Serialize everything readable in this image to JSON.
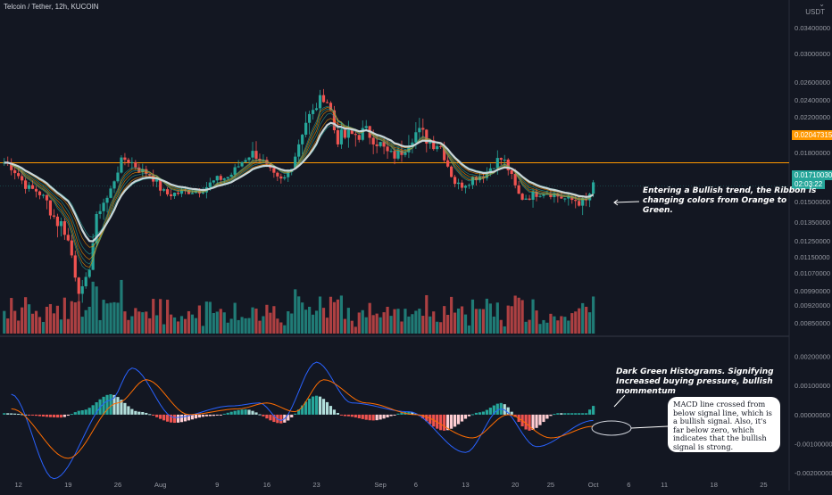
{
  "header": {
    "symbol_title": "Telcoin / Tether, 12h, KUCOIN",
    "currency_menu": "USDT"
  },
  "colors": {
    "background": "#131722",
    "up": "#26a69a",
    "down": "#ef5350",
    "up_bright": "#b2dfdb",
    "down_bright": "#ffcdd2",
    "ribbon_orange": "#ff9800",
    "ribbon_green": "#26a69a",
    "ribbon_base": "#c9d6d9",
    "macd_line": "#2962ff",
    "signal_line": "#ff6d00",
    "level_line": "#ff9800",
    "annotation": "#ffffff"
  },
  "chart_data": [
    {
      "type": "candlestick",
      "title": "Telcoin / Tether, 12h, KUCOIN",
      "y_axis": {
        "labels": [
          "0.03400000",
          "0.03000000",
          "0.02600000",
          "0.02400000",
          "0.02200000",
          "0.01800000",
          "0.01500000",
          "0.01350000",
          "0.01250000",
          "0.01150000",
          "0.01070000",
          "0.00990000",
          "0.00920000",
          "0.00850000"
        ],
        "scale": "log",
        "range": [
          0.0081,
          0.04
        ]
      },
      "x_axis": {
        "labels": [
          "12",
          "19",
          "26",
          "Aug",
          "9",
          "16",
          "23",
          "Sep",
          "6",
          "13",
          "20",
          "25",
          "Oct",
          "6",
          "11",
          "18",
          "25"
        ]
      },
      "horizontal_level": {
        "value": 0.02047315,
        "label": "0.02047315"
      },
      "last_price": {
        "value": 0.0171,
        "label": "0.01710030",
        "countdown": "02:03:22"
      },
      "series_close_anchors": [
        {
          "date": "Jul 10",
          "close": 0.0205
        },
        {
          "date": "Jul 14",
          "close": 0.0166
        },
        {
          "date": "Jul 18",
          "close": 0.0134
        },
        {
          "date": "Jul 21",
          "close": 0.0098
        },
        {
          "date": "Jul 24",
          "close": 0.015
        },
        {
          "date": "Jul 27",
          "close": 0.021
        },
        {
          "date": "Jul 30",
          "close": 0.019
        },
        {
          "date": "Aug 2",
          "close": 0.016
        },
        {
          "date": "Aug 6",
          "close": 0.0165
        },
        {
          "date": "Aug 10",
          "close": 0.0182
        },
        {
          "date": "Aug 14",
          "close": 0.0218
        },
        {
          "date": "Aug 18",
          "close": 0.0178
        },
        {
          "date": "Aug 22",
          "close": 0.0255
        },
        {
          "date": "Aug 24",
          "close": 0.029
        },
        {
          "date": "Aug 26",
          "close": 0.0235
        },
        {
          "date": "Aug 30",
          "close": 0.024
        },
        {
          "date": "Sep 3",
          "close": 0.0215
        },
        {
          "date": "Sep 6",
          "close": 0.024
        },
        {
          "date": "Sep 9",
          "close": 0.023
        },
        {
          "date": "Sep 12",
          "close": 0.0172
        },
        {
          "date": "Sep 15",
          "close": 0.0185
        },
        {
          "date": "Sep 18",
          "close": 0.021
        },
        {
          "date": "Sep 21",
          "close": 0.0155
        },
        {
          "date": "Sep 24",
          "close": 0.0163
        },
        {
          "date": "Sep 28",
          "close": 0.0152
        },
        {
          "date": "Sep 30",
          "close": 0.015
        },
        {
          "date": "Oct 1",
          "close": 0.0171
        }
      ]
    },
    {
      "type": "macd",
      "y_axis": {
        "labels": [
          "0.00200000",
          "0.00100000",
          "0.00000000",
          "-0.00100000",
          "-0.00200000"
        ],
        "range": [
          -0.0023,
          0.0026
        ]
      },
      "histogram_anchors": [
        {
          "date": "Jul 10",
          "value": 5e-05
        },
        {
          "date": "Jul 18",
          "value": -0.0001
        },
        {
          "date": "Jul 21",
          "value": 0.00015
        },
        {
          "date": "Jul 25",
          "value": 0.0007
        },
        {
          "date": "Jul 29",
          "value": 0.0001
        },
        {
          "date": "Aug 3",
          "value": -0.00028
        },
        {
          "date": "Aug 8",
          "value": -5e-05
        },
        {
          "date": "Aug 13",
          "value": 0.00018
        },
        {
          "date": "Aug 18",
          "value": -0.0003
        },
        {
          "date": "Aug 23",
          "value": 0.00065
        },
        {
          "date": "Aug 27",
          "value": -5e-05
        },
        {
          "date": "Aug 31",
          "value": -0.0002
        },
        {
          "date": "Sep 5",
          "value": 0.0001
        },
        {
          "date": "Sep 10",
          "value": -0.00055
        },
        {
          "date": "Sep 15",
          "value": 8e-05
        },
        {
          "date": "Sep 18",
          "value": 0.0004
        },
        {
          "date": "Sep 22",
          "value": -0.00055
        },
        {
          "date": "Sep 26",
          "value": 5e-05
        },
        {
          "date": "Sep 30",
          "value": 5e-05
        },
        {
          "date": "Oct 1",
          "value": 0.0003
        }
      ],
      "macd_anchors": [
        {
          "date": "Jul 11",
          "value": 0.0007
        },
        {
          "date": "Jul 17",
          "value": -0.0022
        },
        {
          "date": "Jul 25",
          "value": 0.0005
        },
        {
          "date": "Jul 28",
          "value": 0.0016
        },
        {
          "date": "Aug 3",
          "value": -0.0001
        },
        {
          "date": "Aug 11",
          "value": 0.0003
        },
        {
          "date": "Aug 15",
          "value": 0.0004
        },
        {
          "date": "Aug 18",
          "value": -0.0002
        },
        {
          "date": "Aug 23",
          "value": 0.0018
        },
        {
          "date": "Aug 28",
          "value": 0.0004
        },
        {
          "date": "Sep 5",
          "value": 0.0001
        },
        {
          "date": "Sep 13",
          "value": -0.0013
        },
        {
          "date": "Sep 18",
          "value": 0.0002
        },
        {
          "date": "Sep 23",
          "value": -0.0011
        },
        {
          "date": "Oct 1",
          "value": -0.0002
        }
      ],
      "signal_anchors": [
        {
          "date": "Jul 11",
          "value": 0.0002
        },
        {
          "date": "Jul 19",
          "value": -0.0015
        },
        {
          "date": "Jul 26",
          "value": 0.0004
        },
        {
          "date": "Jul 30",
          "value": 0.0012
        },
        {
          "date": "Aug 5",
          "value": 0.0
        },
        {
          "date": "Aug 12",
          "value": 0.0002
        },
        {
          "date": "Aug 16",
          "value": 0.0004
        },
        {
          "date": "Aug 20",
          "value": 0.0001
        },
        {
          "date": "Aug 24",
          "value": 0.0012
        },
        {
          "date": "Aug 30",
          "value": 0.0004
        },
        {
          "date": "Sep 6",
          "value": 0.0
        },
        {
          "date": "Sep 14",
          "value": -0.0008
        },
        {
          "date": "Sep 19",
          "value": 0.0
        },
        {
          "date": "Sep 25",
          "value": -0.0008
        },
        {
          "date": "Oct 1",
          "value": -0.0004
        }
      ]
    }
  ],
  "annotations": {
    "ribbon_note": "Entering a Bullish trend, the Ribbon is\nchanging colors from Orange to\nGreen.",
    "histogram_note": "Dark Green Histograms. Signifying\nIncreased buying pressure, bullish\nmommentum",
    "macd_note": "MACD line crossed from\nbelow signal line, which is\na bullish signal. Also, it's\nfar below zero, which\nindicates that the bullish\nsignal is strong."
  }
}
